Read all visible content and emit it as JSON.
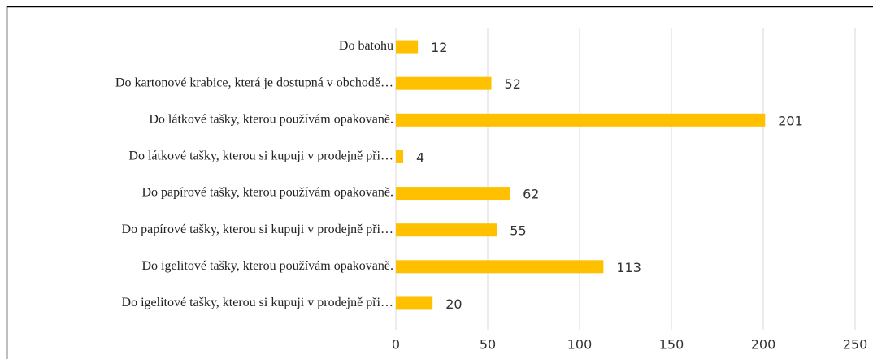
{
  "chart_data": {
    "type": "bar",
    "orientation": "horizontal",
    "categories": [
      "Do batohu",
      "Do kartonové krabice, která je dostupná v obchodě…",
      "Do látkové tašky, kterou používám opakovaně.",
      "Do látkové tašky, kterou si kupuji v prodejně při…",
      "Do papírové tašky, kterou používám opakovaně.",
      "Do papírové tašky, kterou si kupuji v prodejně při…",
      "Do igelitové tašky, kterou používám opakovaně.",
      "Do igelitové tašky, kterou si kupuji v prodejně při…"
    ],
    "values": [
      12,
      52,
      201,
      4,
      62,
      55,
      113,
      20
    ],
    "color": "#ffc000",
    "xlim": [
      0,
      250
    ],
    "xticks": [
      0,
      50,
      100,
      150,
      200,
      250
    ],
    "grid": true
  }
}
